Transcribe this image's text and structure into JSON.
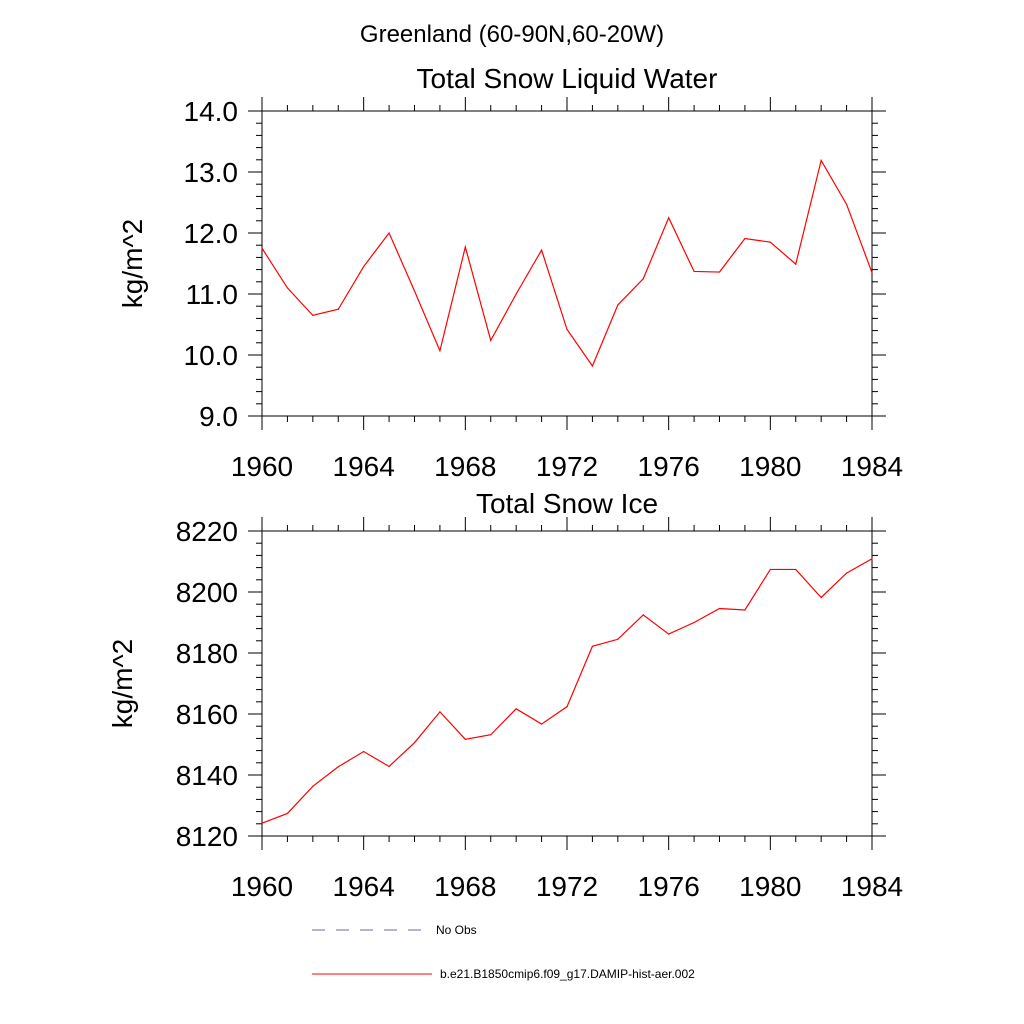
{
  "figure": {
    "title": "Greenland (60-90N,60-20W)"
  },
  "colors": {
    "model_line": "#ff0000",
    "obs_line": "#6a6a9a",
    "axis": "#000000"
  },
  "legend": {
    "placement": "bottom",
    "entries": [
      {
        "label": "No Obs",
        "style": "dashed",
        "color": "#6a6a9a"
      },
      {
        "label": "b.e21.B1850cmip6.f09_g17.DAMIP-hist-aer.002",
        "style": "solid",
        "color": "#ff0000"
      }
    ]
  },
  "chart_data": [
    {
      "type": "line",
      "title": "Total Snow Liquid Water",
      "xlabel": "",
      "ylabel": "kg/m^2",
      "xlim": [
        1960,
        1984
      ],
      "ylim": [
        9,
        14
      ],
      "x_ticks": [
        1960,
        1964,
        1968,
        1972,
        1976,
        1980,
        1984
      ],
      "x_tick_labels": [
        "1960",
        "1964",
        "1968",
        "1972",
        "1976",
        "1980",
        "1984"
      ],
      "y_ticks": [
        9,
        10,
        11,
        12,
        13,
        14
      ],
      "y_tick_labels": [
        "9.0",
        "10.0",
        "11.0",
        "12.0",
        "13.0",
        "14.0"
      ],
      "grid": false,
      "x": [
        1960,
        1961,
        1962,
        1963,
        1964,
        1965,
        1966,
        1967,
        1968,
        1969,
        1970,
        1971,
        1972,
        1973,
        1974,
        1975,
        1976,
        1977,
        1978,
        1979,
        1980,
        1981,
        1982,
        1983,
        1984
      ],
      "series": [
        {
          "values": [
            11.75,
            11.1,
            10.65,
            10.75,
            11.45,
            12.0,
            11.05,
            10.07,
            11.77,
            10.24,
            11.0,
            11.72,
            10.42,
            9.82,
            10.82,
            11.25,
            12.25,
            11.37,
            11.36,
            11.91,
            11.85,
            11.49,
            13.19,
            12.47,
            11.35
          ]
        }
      ]
    },
    {
      "type": "line",
      "title": "Total Snow Ice",
      "xlabel": "",
      "ylabel": "kg/m^2",
      "xlim": [
        1960,
        1984
      ],
      "ylim": [
        8120,
        8220
      ],
      "x_ticks": [
        1960,
        1964,
        1968,
        1972,
        1976,
        1980,
        1984
      ],
      "x_tick_labels": [
        "1960",
        "1964",
        "1968",
        "1972",
        "1976",
        "1980",
        "1984"
      ],
      "y_ticks": [
        8120,
        8140,
        8160,
        8180,
        8200,
        8220
      ],
      "y_tick_labels": [
        "8120",
        "8140",
        "8160",
        "8180",
        "8200",
        "8220"
      ],
      "grid": false,
      "x": [
        1960,
        1961,
        1962,
        1963,
        1964,
        1965,
        1966,
        1967,
        1968,
        1969,
        1970,
        1971,
        1972,
        1973,
        1974,
        1975,
        1976,
        1977,
        1978,
        1979,
        1980,
        1981,
        1982,
        1983,
        1984
      ],
      "series": [
        {
          "values": [
            8124.2,
            8127.4,
            8136.3,
            8142.7,
            8147.7,
            8142.8,
            8150.6,
            8160.7,
            8151.7,
            8153.2,
            8161.7,
            8156.7,
            8162.4,
            8182.2,
            8184.5,
            8192.5,
            8186.2,
            8190.0,
            8194.6,
            8194.1,
            8207.4,
            8207.4,
            8198.2,
            8206.2,
            8210.9
          ]
        }
      ]
    }
  ]
}
